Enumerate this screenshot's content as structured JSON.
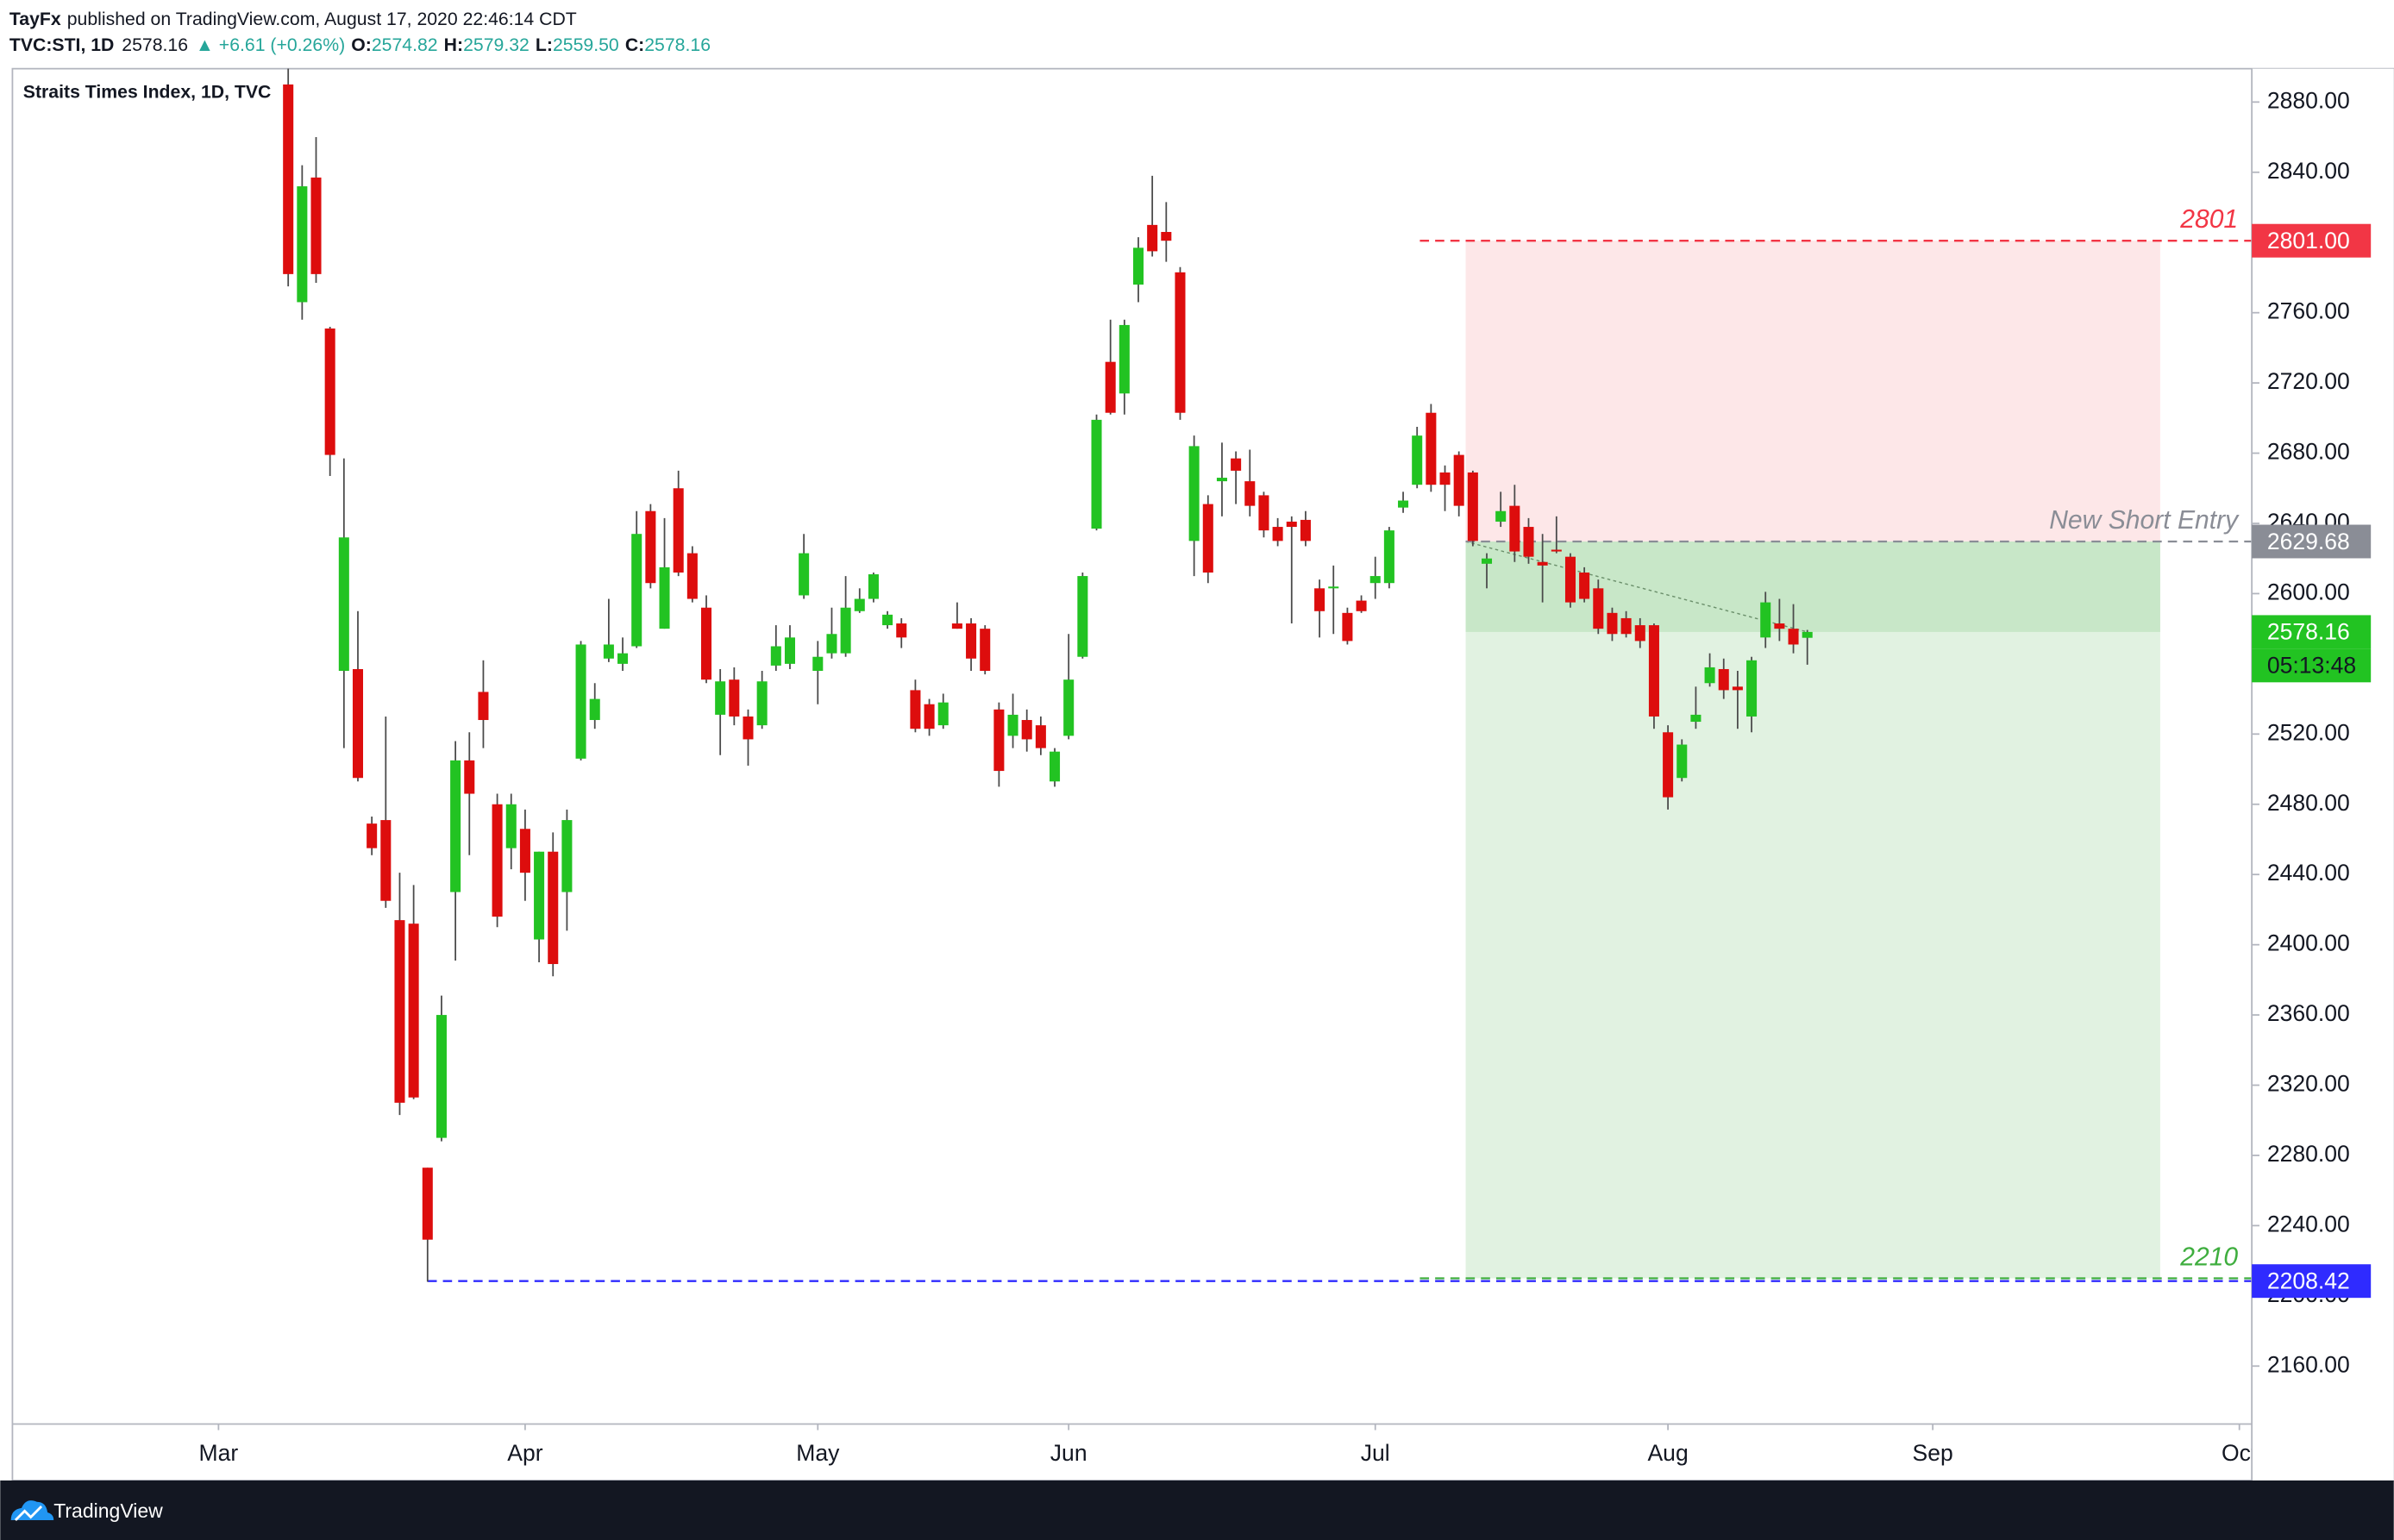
{
  "header": {
    "author": "TayFx",
    "published": "published on TradingView.com, August 17, 2020 22:46:14 CDT",
    "symbol": "TVC:STI, 1D",
    "last": "2578.16",
    "change": "▲ +6.61 (+0.26%)",
    "ohlc": [
      {
        "key": "O:",
        "value": "2574.82"
      },
      {
        "key": "H:",
        "value": "2579.32"
      },
      {
        "key": "L:",
        "value": "2559.50"
      },
      {
        "key": "C:",
        "value": "2578.16"
      }
    ]
  },
  "footer": {
    "brand": "TradingView"
  },
  "chart_data": {
    "type": "candlestick",
    "title": "Straits Times Index, 1D, TVC",
    "categories": [
      "Mar",
      null,
      null,
      null,
      null,
      null,
      null,
      null,
      null,
      null,
      null,
      null,
      null,
      null,
      null,
      null,
      null,
      null,
      null,
      null,
      null,
      null,
      "Apr",
      null,
      null,
      null,
      null,
      null,
      null,
      null,
      null,
      null,
      null,
      null,
      null,
      null,
      null,
      null,
      null,
      null,
      null,
      null,
      null,
      "May",
      null,
      null,
      null,
      null,
      null,
      null,
      null,
      null,
      null,
      null,
      null,
      null,
      null,
      null,
      null,
      null,
      null,
      "Jun",
      null,
      null,
      null,
      null,
      null,
      null,
      null,
      null,
      null,
      null,
      null,
      null,
      null,
      null,
      null,
      null,
      null,
      null,
      null,
      null,
      null,
      "Jul",
      null,
      null,
      null,
      null,
      null,
      null,
      null,
      null,
      null,
      null,
      null,
      null,
      null,
      null,
      null,
      null,
      null,
      null,
      null,
      null,
      "Aug",
      null,
      null,
      null,
      null,
      null,
      null,
      null,
      null,
      null,
      null,
      null,
      null,
      null,
      null,
      null,
      null,
      null,
      null,
      "Sep",
      null,
      null,
      null,
      null,
      null,
      null,
      null,
      null,
      null,
      null,
      null,
      null,
      null,
      null,
      null,
      null,
      null,
      null,
      null,
      null,
      null,
      "Oct"
    ],
    "open": [
      null,
      null,
      null,
      null,
      null,
      2890,
      2766,
      2837,
      2751,
      2556,
      2557,
      2469,
      2471,
      2414,
      2412,
      2273,
      2290,
      2430,
      2505,
      2544,
      2480,
      2455,
      2466,
      2403,
      2453,
      2430,
      2506,
      2528,
      2563,
      2560,
      2570,
      2647,
      2580,
      2660,
      2623,
      2592,
      2531,
      2551,
      2530,
      2525,
      2559,
      2560,
      2599,
      2556,
      2566,
      2566,
      2590,
      2597,
      2582,
      2583,
      2545,
      2537,
      2525,
      2583,
      2583,
      2580,
      2534,
      2519,
      2528,
      2525,
      2493,
      2519,
      2564,
      2637,
      2732,
      2714,
      2776,
      2810,
      2806,
      2783,
      2630,
      2651,
      2664,
      2677,
      2664,
      2656,
      2638,
      2641,
      2642,
      2603,
      2603,
      2589,
      2596,
      2606,
      2606,
      2649,
      2662,
      2703,
      2669,
      2679,
      2669,
      2617,
      2641,
      2650,
      2638,
      2618,
      2625,
      2621,
      2612,
      2603,
      2589,
      2586,
      2582,
      2582,
      2521,
      2495,
      2527,
      2549,
      2557,
      2547,
      2530,
      2575,
      2583,
      2580,
      2574.82,
      null,
      null,
      null,
      null,
      null,
      null,
      null,
      null,
      null,
      null,
      null,
      null,
      null,
      null,
      null,
      null,
      null,
      null,
      null,
      null,
      null,
      null,
      null,
      null,
      null,
      null,
      null,
      null,
      null,
      null,
      null
    ],
    "high": [
      null,
      null,
      null,
      null,
      null,
      2900,
      2844,
      2860,
      2752,
      2677,
      2590,
      2473,
      2530,
      2441,
      2434,
      2273,
      2371,
      2516,
      2521,
      2562,
      2486,
      2486,
      2477,
      2453,
      2464,
      2477,
      2573,
      2549,
      2597,
      2575,
      2647,
      2651,
      2643,
      2670,
      2627,
      2599,
      2557,
      2558,
      2534,
      2556,
      2582,
      2582,
      2634,
      2573,
      2592,
      2610,
      2603,
      2612,
      2590,
      2586,
      2551,
      2540,
      2543,
      2595,
      2586,
      2582,
      2538,
      2543,
      2534,
      2530,
      2512,
      2577,
      2612,
      2702,
      2756,
      2756,
      2803,
      2838,
      2823,
      2786,
      2690,
      2656,
      2686,
      2681,
      2682,
      2658,
      2643,
      2644,
      2647,
      2608,
      2616,
      2592,
      2599,
      2621,
      2638,
      2658,
      2695,
      2708,
      2673,
      2681,
      2670,
      2623,
      2658,
      2662,
      2643,
      2634,
      2644,
      2623,
      2615,
      2608,
      2592,
      2590,
      2586,
      2583,
      2525,
      2517,
      2547,
      2566,
      2563,
      2556,
      2564,
      2601,
      2597,
      2594,
      2579.32,
      null,
      null,
      null,
      null,
      null,
      null,
      null,
      null,
      null,
      null,
      null,
      null,
      null,
      null,
      null,
      null,
      null,
      null,
      null,
      null,
      null,
      null,
      null,
      null,
      null,
      null,
      null,
      null,
      null,
      null,
      null
    ],
    "low": [
      null,
      null,
      null,
      null,
      null,
      2775,
      2756,
      2777,
      2667,
      2512,
      2493,
      2451,
      2421,
      2303,
      2312,
      2208,
      2288,
      2391,
      2451,
      2512,
      2410,
      2443,
      2425,
      2390,
      2382,
      2408,
      2505,
      2523,
      2561,
      2556,
      2569,
      2603,
      2580,
      2610,
      2595,
      2549,
      2508,
      2525,
      2502,
      2523,
      2556,
      2557,
      2597,
      2537,
      2563,
      2564,
      2589,
      2595,
      2580,
      2569,
      2521,
      2519,
      2523,
      2580,
      2556,
      2554,
      2490,
      2512,
      2510,
      2508,
      2490,
      2517,
      2563,
      2636,
      2702,
      2702,
      2766,
      2792,
      2789,
      2699,
      2610,
      2606,
      2644,
      2651,
      2644,
      2632,
      2627,
      2583,
      2627,
      2575,
      2577,
      2571,
      2589,
      2597,
      2603,
      2646,
      2660,
      2658,
      2647,
      2644,
      2627,
      2603,
      2638,
      2618,
      2617,
      2595,
      2623,
      2592,
      2595,
      2577,
      2573,
      2575,
      2569,
      2523,
      2477,
      2493,
      2523,
      2547,
      2540,
      2523,
      2521,
      2569,
      2573,
      2566,
      2559.5,
      null,
      null,
      null,
      null,
      null,
      null,
      null,
      null,
      null,
      null,
      null,
      null,
      null,
      null,
      null,
      null,
      null,
      null,
      null,
      null,
      null,
      null,
      null,
      null,
      null,
      null,
      null,
      null,
      null,
      null,
      null
    ],
    "close": [
      null,
      null,
      null,
      null,
      null,
      2782,
      2832,
      2782,
      2679,
      2632,
      2495,
      2455,
      2425,
      2310,
      2313,
      2232,
      2360,
      2505,
      2486,
      2528,
      2416,
      2480,
      2441,
      2453,
      2389,
      2471,
      2571,
      2540,
      2571,
      2566,
      2634,
      2606,
      2615,
      2612,
      2597,
      2551,
      2550,
      2530,
      2517,
      2550,
      2570,
      2575,
      2623,
      2564,
      2577,
      2592,
      2597,
      2611,
      2588,
      2575,
      2523,
      2523,
      2538,
      2580,
      2563,
      2556,
      2499,
      2531,
      2517,
      2512,
      2510,
      2551,
      2610,
      2699,
      2703,
      2753,
      2797,
      2795,
      2801,
      2703,
      2684,
      2612,
      2666,
      2670,
      2650,
      2636,
      2630,
      2638,
      2630,
      2590,
      2604,
      2573,
      2590,
      2610,
      2636,
      2653,
      2690,
      2662,
      2662,
      2650,
      2630,
      2620,
      2647,
      2624,
      2621,
      2616,
      2624,
      2595,
      2597,
      2580,
      2577,
      2577,
      2573,
      2530,
      2484,
      2514,
      2531,
      2558,
      2545,
      2545,
      2562,
      2595,
      2580,
      2571,
      2578.16,
      null,
      null,
      null,
      null,
      null,
      null,
      null,
      null,
      null,
      null,
      null,
      null,
      null,
      null,
      null,
      null,
      null,
      null,
      null,
      null,
      null,
      null,
      null,
      null,
      null,
      null,
      null,
      null,
      null,
      null,
      null
    ],
    "up_color": "#22c322",
    "down_color": "#dd0d0d",
    "wick_color": "#4a4a4a",
    "countdown": "05:13:48",
    "levels": [
      {
        "value": 2801,
        "label": "2801",
        "axis_label": "2801.00",
        "color": "#f23645"
      },
      {
        "value": 2629.68,
        "label": "New Short Entry",
        "axis_label": "2629.68",
        "color": "#8a8d96"
      },
      {
        "value": 2210,
        "label": "2210",
        "color": "#3fae3f"
      },
      {
        "value": 2208.42,
        "axis_label": "2208.42",
        "color": "#2f2bff"
      }
    ],
    "ylim": [
      2127,
      2899
    ],
    "yticks": [
      {
        "value": 2160,
        "label": "2160.00"
      },
      {
        "value": 2200,
        "label": "2200.00"
      },
      {
        "value": 2240,
        "label": "2240.00"
      },
      {
        "value": 2280,
        "label": "2280.00"
      },
      {
        "value": 2320,
        "label": "2320.00"
      },
      {
        "value": 2360,
        "label": "2360.00"
      },
      {
        "value": 2400,
        "label": "2400.00"
      },
      {
        "value": 2440,
        "label": "2440.00"
      },
      {
        "value": 2480,
        "label": "2480.00"
      },
      {
        "value": 2520,
        "label": "2520.00"
      },
      {
        "value": 2560,
        "label": "2560.00"
      },
      {
        "value": 2600,
        "label": "2600.00"
      },
      {
        "value": 2640,
        "label": "2640.00"
      },
      {
        "value": 2680,
        "label": "2680.00"
      },
      {
        "value": 2720,
        "label": "2720.00"
      },
      {
        "value": 2760,
        "label": "2760.00"
      },
      {
        "value": 2800,
        "label": "2800.00"
      },
      {
        "value": 2840,
        "label": "2840.00"
      },
      {
        "value": 2880,
        "label": "2880.00"
      }
    ],
    "grid": false
  }
}
